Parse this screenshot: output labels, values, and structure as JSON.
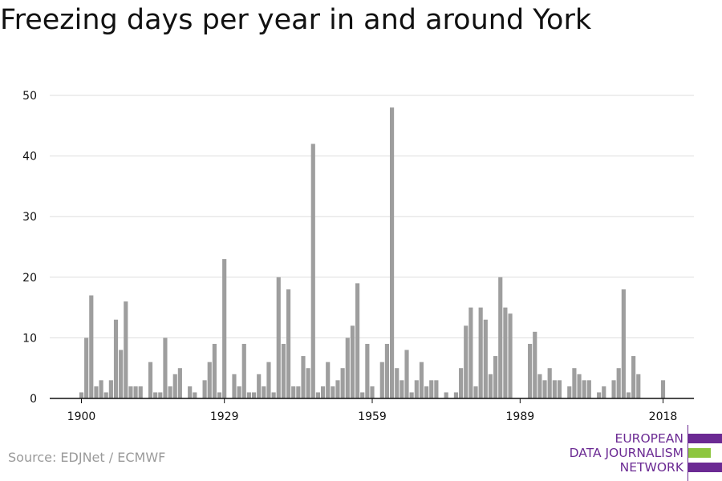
{
  "title": "Freezing days per year in and around York",
  "source": "Source: EDJNet / ECMWF",
  "logo": {
    "lines": [
      "EUROPEAN",
      "DATA JOURNALISM",
      "NETWORK"
    ],
    "colors": {
      "purple": "#6b2a93",
      "green": "#8dc63f"
    }
  },
  "chart_data": {
    "type": "bar",
    "title": "Freezing days per year in and around York",
    "xlabel": "",
    "ylabel": "",
    "ylim": [
      0,
      50
    ],
    "yticks": [
      0,
      10,
      20,
      30,
      40,
      50
    ],
    "xticks": [
      1900,
      1929,
      1959,
      1989,
      2018
    ],
    "grid": true,
    "bar_color": "#9e9e9e",
    "categories": [
      1900,
      1901,
      1902,
      1903,
      1904,
      1905,
      1906,
      1907,
      1908,
      1909,
      1910,
      1911,
      1912,
      1913,
      1914,
      1915,
      1916,
      1917,
      1918,
      1919,
      1920,
      1921,
      1922,
      1923,
      1924,
      1925,
      1926,
      1927,
      1928,
      1929,
      1930,
      1931,
      1932,
      1933,
      1934,
      1935,
      1936,
      1937,
      1938,
      1939,
      1940,
      1941,
      1942,
      1943,
      1944,
      1945,
      1946,
      1947,
      1948,
      1949,
      1950,
      1951,
      1952,
      1953,
      1954,
      1955,
      1956,
      1957,
      1958,
      1959,
      1960,
      1961,
      1962,
      1963,
      1964,
      1965,
      1966,
      1967,
      1968,
      1969,
      1970,
      1971,
      1972,
      1973,
      1974,
      1975,
      1976,
      1977,
      1978,
      1979,
      1980,
      1981,
      1982,
      1983,
      1984,
      1985,
      1986,
      1987,
      1988,
      1989,
      1990,
      1991,
      1992,
      1993,
      1994,
      1995,
      1996,
      1997,
      1998,
      1999,
      2000,
      2001,
      2002,
      2003,
      2004,
      2005,
      2006,
      2007,
      2008,
      2009,
      2010,
      2011,
      2012,
      2013,
      2014,
      2015,
      2016,
      2017,
      2018
    ],
    "values": [
      1,
      10,
      17,
      2,
      3,
      1,
      3,
      13,
      8,
      16,
      2,
      2,
      2,
      0,
      6,
      1,
      1,
      10,
      2,
      4,
      5,
      0,
      2,
      1,
      0,
      3,
      6,
      9,
      1,
      23,
      0,
      4,
      2,
      9,
      1,
      1,
      4,
      2,
      6,
      1,
      20,
      9,
      18,
      2,
      2,
      7,
      5,
      42,
      1,
      2,
      6,
      2,
      3,
      5,
      10,
      12,
      19,
      1,
      9,
      2,
      0,
      6,
      9,
      48,
      5,
      3,
      8,
      1,
      3,
      6,
      2,
      3,
      3,
      0,
      1,
      0,
      1,
      5,
      12,
      15,
      2,
      15,
      13,
      4,
      7,
      20,
      15,
      14,
      0,
      0,
      0,
      9,
      11,
      4,
      3,
      5,
      3,
      3,
      0,
      2,
      5,
      4,
      3,
      3,
      0,
      1,
      2,
      0,
      3,
      5,
      18,
      1,
      7,
      4,
      0,
      0,
      0,
      0,
      3
    ]
  }
}
